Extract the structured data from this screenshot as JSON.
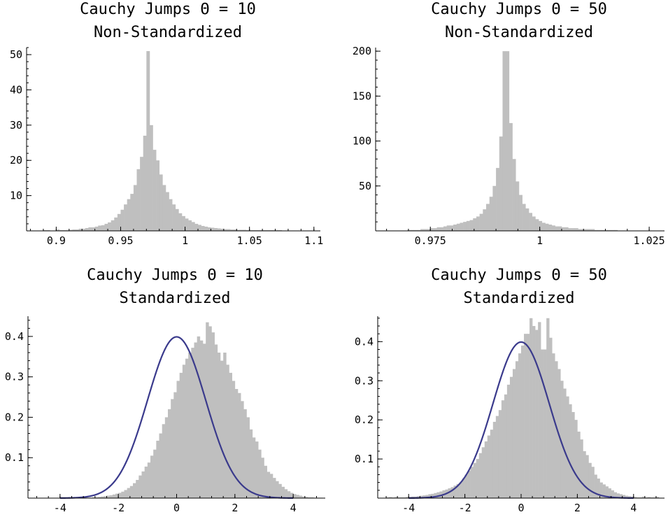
{
  "chart_data": [
    {
      "type": "bar",
      "title": "Cauchy Jumps Θ = 10",
      "subtitle": "Non-Standardized",
      "xlim": [
        0.877,
        1.105
      ],
      "ylim": [
        0,
        52
      ],
      "xticks": [
        {
          "v": 0.9,
          "label": "0.9"
        },
        {
          "v": 0.95,
          "label": "0.95"
        },
        {
          "v": 1.0,
          "label": "1"
        },
        {
          "v": 1.05,
          "label": "1.05"
        },
        {
          "v": 1.1,
          "label": "1.1"
        }
      ],
      "yticks": [
        {
          "v": 10,
          "label": "10"
        },
        {
          "v": 20,
          "label": "20"
        },
        {
          "v": 30,
          "label": "30"
        },
        {
          "v": 40,
          "label": "40"
        },
        {
          "v": 50,
          "label": "50"
        }
      ],
      "bin_start": 0.88,
      "bin_width": 0.0025,
      "values": [
        0,
        0,
        0,
        0,
        0.2,
        0.2,
        0,
        0,
        0.4,
        0.2,
        0.2,
        0.2,
        0.3,
        0.4,
        0.4,
        0.6,
        0.6,
        0.8,
        1.0,
        1.0,
        1.2,
        1.5,
        1.6,
        2.0,
        2.4,
        3.0,
        3.8,
        4.8,
        6.0,
        7.5,
        9.0,
        10.5,
        13.0,
        17.5,
        21.0,
        27.0,
        51.0,
        30.0,
        23.0,
        20.0,
        16.0,
        13.0,
        11.0,
        9.0,
        7.5,
        6.2,
        5.0,
        4.2,
        3.5,
        3.0,
        2.5,
        2.0,
        1.7,
        1.4,
        1.2,
        1.0,
        0.9,
        0.8,
        0.7,
        0.6,
        0.5,
        0.5,
        0.4,
        0.4,
        0.3,
        0.3,
        0.3,
        0.2,
        0.2,
        0.2,
        0.2,
        0.2,
        0.2,
        0.2,
        0.2,
        0.2,
        0.2,
        0.2,
        0,
        0,
        0,
        0,
        0,
        0,
        0,
        0,
        0,
        0,
        0,
        0
      ]
    },
    {
      "type": "bar",
      "title": "Cauchy Jumps Θ = 50",
      "subtitle": "Non-Standardized",
      "xlim": [
        0.9625,
        1.0285
      ],
      "ylim": [
        0,
        204
      ],
      "xticks": [
        {
          "v": 0.975,
          "label": "0.975"
        },
        {
          "v": 1.0,
          "label": "1"
        },
        {
          "v": 1.025,
          "label": "1.025"
        }
      ],
      "yticks": [
        {
          "v": 50,
          "label": "50"
        },
        {
          "v": 100,
          "label": "100"
        },
        {
          "v": 150,
          "label": "150"
        },
        {
          "v": 200,
          "label": "200"
        }
      ],
      "bin_start": 0.963,
      "bin_width": 0.00075,
      "values": [
        0,
        0,
        0,
        0,
        0,
        0,
        0,
        0,
        0,
        1,
        1,
        1,
        1,
        2,
        2,
        2,
        3,
        3,
        4,
        4,
        5,
        6,
        6,
        7,
        8,
        9,
        10,
        11,
        12,
        14,
        16,
        19,
        24,
        30,
        38,
        50,
        70,
        105,
        200,
        200,
        120,
        80,
        55,
        40,
        30,
        25,
        20,
        16,
        13,
        11,
        9,
        8,
        7,
        6,
        5,
        5,
        4,
        4,
        3,
        3,
        3,
        2,
        2,
        2,
        2,
        2,
        1,
        1,
        1,
        1,
        1,
        1,
        1,
        0,
        0,
        0,
        0,
        0,
        0,
        0,
        0,
        0,
        0,
        0,
        0,
        0,
        0,
        0
      ]
    },
    {
      "type": "bar",
      "title": "Cauchy Jumps Θ = 10",
      "subtitle": "Standardized",
      "xlim": [
        -5.1,
        5.1
      ],
      "ylim": [
        0,
        0.45
      ],
      "xticks": [
        {
          "v": -4,
          "label": "-4"
        },
        {
          "v": -2,
          "label": "-2"
        },
        {
          "v": 0,
          "label": "0"
        },
        {
          "v": 2,
          "label": "2"
        },
        {
          "v": 4,
          "label": "4"
        }
      ],
      "yticks": [
        {
          "v": 0.1,
          "label": "0.1"
        },
        {
          "v": 0.2,
          "label": "0.2"
        },
        {
          "v": 0.3,
          "label": "0.3"
        },
        {
          "v": 0.4,
          "label": "0.4"
        }
      ],
      "bin_start": -4.0,
      "bin_width": 0.1,
      "values": [
        0,
        0,
        0,
        0,
        0,
        0,
        0,
        0,
        0,
        0,
        0.001,
        0.002,
        0.002,
        0.003,
        0.004,
        0.005,
        0.006,
        0.007,
        0.009,
        0.011,
        0.013,
        0.016,
        0.02,
        0.025,
        0.03,
        0.037,
        0.045,
        0.056,
        0.066,
        0.078,
        0.088,
        0.105,
        0.12,
        0.142,
        0.16,
        0.183,
        0.2,
        0.22,
        0.245,
        0.262,
        0.29,
        0.31,
        0.33,
        0.345,
        0.36,
        0.372,
        0.385,
        0.4,
        0.39,
        0.382,
        0.435,
        0.425,
        0.41,
        0.38,
        0.36,
        0.34,
        0.36,
        0.33,
        0.31,
        0.29,
        0.27,
        0.26,
        0.24,
        0.22,
        0.2,
        0.17,
        0.15,
        0.14,
        0.12,
        0.1,
        0.08,
        0.065,
        0.06,
        0.05,
        0.042,
        0.035,
        0.028,
        0.022,
        0.017,
        0.013,
        0.01,
        0.008,
        0.006,
        0.004,
        0.003,
        0.002,
        0.002,
        0.001,
        0.001,
        0.001
      ],
      "curve": "normal-pdf"
    },
    {
      "type": "bar",
      "title": "Cauchy Jumps Θ = 50",
      "subtitle": "Standardized",
      "xlim": [
        -5.1,
        5.1
      ],
      "ylim": [
        0,
        0.465
      ],
      "xticks": [
        {
          "v": -4,
          "label": "-4"
        },
        {
          "v": -2,
          "label": "-2"
        },
        {
          "v": 0,
          "label": "0"
        },
        {
          "v": 2,
          "label": "2"
        },
        {
          "v": 4,
          "label": "4"
        }
      ],
      "yticks": [
        {
          "v": 0.1,
          "label": "0.1"
        },
        {
          "v": 0.2,
          "label": "0.2"
        },
        {
          "v": 0.3,
          "label": "0.3"
        },
        {
          "v": 0.4,
          "label": "0.4"
        }
      ],
      "bin_start": -4.8,
      "bin_width": 0.1,
      "values": [
        0.002,
        0.003,
        0.002,
        0.003,
        0.002,
        0.002,
        0.002,
        0.003,
        0.003,
        0.004,
        0.004,
        0.005,
        0.006,
        0.007,
        0.008,
        0.01,
        0.011,
        0.013,
        0.015,
        0.017,
        0.02,
        0.022,
        0.025,
        0.028,
        0.032,
        0.036,
        0.04,
        0.05,
        0.06,
        0.07,
        0.08,
        0.09,
        0.1,
        0.115,
        0.13,
        0.145,
        0.16,
        0.175,
        0.195,
        0.21,
        0.225,
        0.25,
        0.265,
        0.29,
        0.31,
        0.33,
        0.35,
        0.37,
        0.39,
        0.42,
        0.42,
        0.46,
        0.44,
        0.43,
        0.45,
        0.38,
        0.38,
        0.46,
        0.41,
        0.37,
        0.35,
        0.33,
        0.3,
        0.28,
        0.26,
        0.24,
        0.22,
        0.2,
        0.17,
        0.15,
        0.12,
        0.11,
        0.09,
        0.08,
        0.06,
        0.05,
        0.04,
        0.035,
        0.03,
        0.025,
        0.02,
        0.015,
        0.012,
        0.01,
        0.008,
        0.006,
        0.005,
        0.004,
        0.003,
        0.002,
        0.002,
        0.004,
        0.002,
        0.003,
        0.002,
        0.002,
        0.003
      ],
      "curve": "normal-pdf"
    }
  ]
}
